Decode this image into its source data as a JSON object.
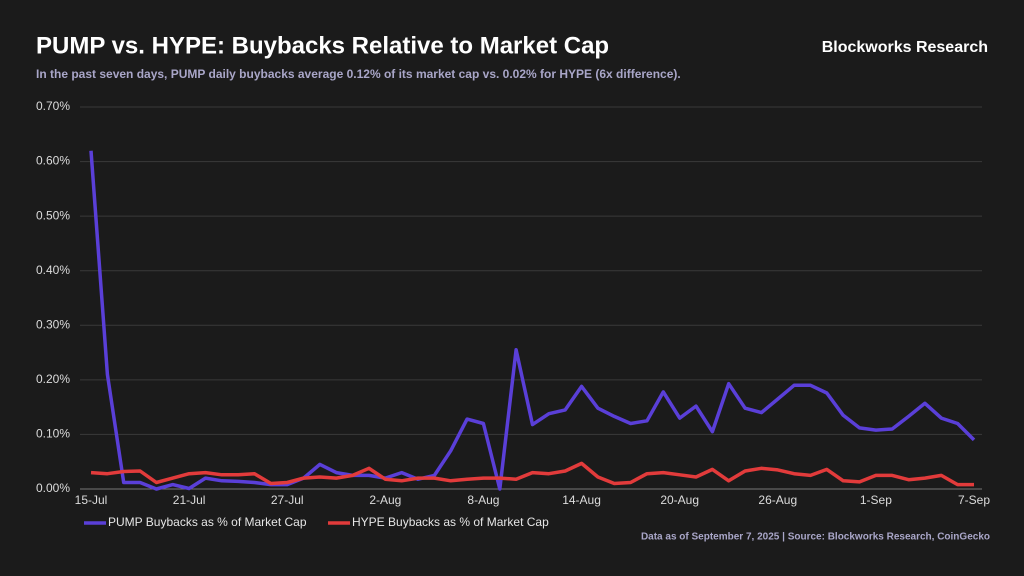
{
  "chart_data": {
    "type": "line",
    "title": "PUMP vs. HYPE: Buybacks Relative to Market Cap",
    "subtitle": "In the past seven days, PUMP daily buybacks average 0.12% of its market cap vs. 0.02% for HYPE (6x difference).",
    "brand": "Blockworks Research",
    "source": "Data as of September 7, 2025 | Source: Blockworks Research, CoinGecko",
    "categories": [
      "15-Jul",
      null,
      null,
      null,
      null,
      null,
      "21-Jul",
      null,
      null,
      null,
      null,
      null,
      "27-Jul",
      null,
      null,
      null,
      null,
      null,
      "2-Aug",
      null,
      null,
      null,
      null,
      null,
      "8-Aug",
      null,
      null,
      null,
      null,
      null,
      "14-Aug",
      null,
      null,
      null,
      null,
      null,
      "20-Aug",
      null,
      null,
      null,
      null,
      null,
      "26-Aug",
      null,
      null,
      null,
      null,
      null,
      "1-Sep",
      null,
      null,
      null,
      null,
      null,
      "7-Sep"
    ],
    "series": [
      {
        "name": "PUMP Buybacks as % of Market Cap",
        "color": "#5a3fd8",
        "values": [
          0.62,
          0.21,
          0.012,
          0.012,
          0.0,
          0.008,
          0.001,
          0.02,
          0.015,
          0.014,
          0.012,
          0.008,
          0.008,
          0.02,
          0.045,
          0.03,
          0.025,
          0.025,
          0.02,
          0.03,
          0.018,
          0.025,
          0.07,
          0.128,
          0.12,
          0.0,
          0.255,
          0.118,
          0.138,
          0.145,
          0.188,
          0.148,
          0.133,
          0.12,
          0.125,
          0.178,
          0.13,
          0.152,
          0.105,
          0.193,
          0.148,
          0.14,
          0.165,
          0.19,
          0.19,
          0.176,
          0.135,
          0.112,
          0.108,
          0.11,
          0.133,
          0.157,
          0.13,
          0.12,
          0.09
        ]
      },
      {
        "name": "HYPE Buybacks as % of Market Cap",
        "color": "#e23b3b",
        "values": [
          0.03,
          0.028,
          0.032,
          0.033,
          0.012,
          0.02,
          0.028,
          0.03,
          0.026,
          0.026,
          0.028,
          0.01,
          0.012,
          0.02,
          0.022,
          0.02,
          0.025,
          0.038,
          0.018,
          0.015,
          0.02,
          0.02,
          0.015,
          0.018,
          0.02,
          0.02,
          0.018,
          0.03,
          0.028,
          0.033,
          0.047,
          0.022,
          0.01,
          0.012,
          0.028,
          0.03,
          0.026,
          0.022,
          0.036,
          0.015,
          0.033,
          0.038,
          0.035,
          0.028,
          0.025,
          0.036,
          0.015,
          0.013,
          0.025,
          0.025,
          0.017,
          0.02,
          0.025,
          0.008,
          0.008
        ]
      }
    ],
    "ylim": [
      0,
      0.7
    ],
    "yticks": [
      {
        "value": 0,
        "label": "0.00%"
      },
      {
        "value": 0.1,
        "label": "0.10%"
      },
      {
        "value": 0.2,
        "label": "0.20%"
      },
      {
        "value": 0.3,
        "label": "0.30%"
      },
      {
        "value": 0.4,
        "label": "0.40%"
      },
      {
        "value": 0.5,
        "label": "0.50%"
      },
      {
        "value": 0.6,
        "label": "0.60%"
      },
      {
        "value": 0.7,
        "label": "0.70%"
      }
    ],
    "grid": true,
    "legend": "bottom-left"
  }
}
